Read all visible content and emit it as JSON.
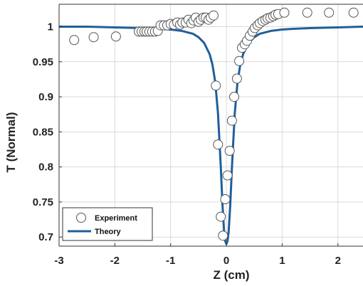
{
  "chart_data": {
    "type": "scatter",
    "title": "",
    "xlabel": "Z (cm)",
    "ylabel": "T (Normal)",
    "xlim": [
      -3,
      2.45
    ],
    "ylim": [
      0.687,
      1.032
    ],
    "xticks": [
      -3,
      -2,
      -1,
      0,
      1,
      2
    ],
    "xtick_labels": [
      "-3",
      "-2",
      "-1",
      "0",
      "1",
      "2"
    ],
    "yticks": [
      0.7,
      0.75,
      0.8,
      0.85,
      0.9,
      0.95,
      1.0
    ],
    "ytick_labels": [
      "0.7",
      "0.75",
      "0.8",
      "0.85",
      "0.9",
      "0.95",
      "1"
    ],
    "grid": true,
    "legend_position": "bottom-left",
    "colors": {
      "theory": "#1f5f9a",
      "marker_edge": "#555555",
      "grid": "#d9d9d9",
      "axis": "#333333"
    },
    "series": [
      {
        "name": "Experiment",
        "kind": "scatter",
        "x": [
          -2.73,
          -2.38,
          -1.98,
          -1.57,
          -1.52,
          -1.47,
          -1.43,
          -1.38,
          -1.33,
          -1.28,
          -1.23,
          -1.18,
          -1.12,
          -1.06,
          -1.0,
          -0.94,
          -0.88,
          -0.83,
          -0.79,
          -0.73,
          -0.68,
          -0.63,
          -0.59,
          -0.55,
          -0.5,
          -0.46,
          -0.41,
          -0.37,
          -0.32,
          -0.28,
          -0.23,
          -0.19,
          -0.15,
          -0.1,
          -0.06,
          -0.02,
          0.02,
          0.06,
          0.1,
          0.14,
          0.19,
          0.23,
          0.28,
          0.33,
          0.37,
          0.42,
          0.47,
          0.51,
          0.56,
          0.6,
          0.65,
          0.7,
          0.74,
          0.79,
          0.84,
          0.88,
          0.93,
          1.04,
          1.45,
          1.84,
          2.28
        ],
        "y": [
          0.981,
          0.985,
          0.986,
          0.993,
          0.993,
          0.993,
          0.993,
          0.993,
          0.993,
          0.993,
          0.994,
          1.002,
          1.002,
          1.002,
          1.004,
          1.003,
          1.006,
          1.003,
          1.006,
          1.006,
          1.01,
          1.005,
          1.009,
          1.013,
          1.007,
          1.01,
          1.013,
          1.013,
          1.01,
          1.013,
          1.016,
          0.916,
          0.832,
          0.729,
          0.702,
          0.754,
          0.788,
          0.823,
          0.866,
          0.9,
          0.926,
          0.951,
          0.97,
          0.975,
          0.98,
          0.987,
          0.993,
          0.998,
          1.002,
          1.005,
          1.008,
          1.01,
          1.012,
          1.013,
          1.015,
          1.017,
          1.018,
          1.02,
          1.02,
          1.02,
          1.02
        ]
      },
      {
        "name": "Theory",
        "kind": "line",
        "x": [
          -3.0,
          -2.5,
          -2.0,
          -1.5,
          -1.2,
          -1.0,
          -0.8,
          -0.6,
          -0.5,
          -0.4,
          -0.3,
          -0.25,
          -0.2,
          -0.15,
          -0.1,
          -0.07,
          -0.04,
          -0.02,
          0.0,
          0.02,
          0.04,
          0.07,
          0.1,
          0.15,
          0.2,
          0.25,
          0.3,
          0.4,
          0.5,
          0.6,
          0.8,
          1.0,
          1.2,
          1.5,
          2.0,
          2.45
        ],
        "y": [
          1.0,
          1.0,
          0.999,
          0.998,
          0.997,
          0.996,
          0.994,
          0.99,
          0.985,
          0.977,
          0.961,
          0.946,
          0.921,
          0.876,
          0.8,
          0.746,
          0.707,
          0.694,
          0.69,
          0.694,
          0.707,
          0.746,
          0.8,
          0.876,
          0.921,
          0.946,
          0.961,
          0.977,
          0.985,
          0.99,
          0.994,
          0.996,
          0.997,
          0.998,
          0.999,
          1.0
        ]
      }
    ]
  }
}
